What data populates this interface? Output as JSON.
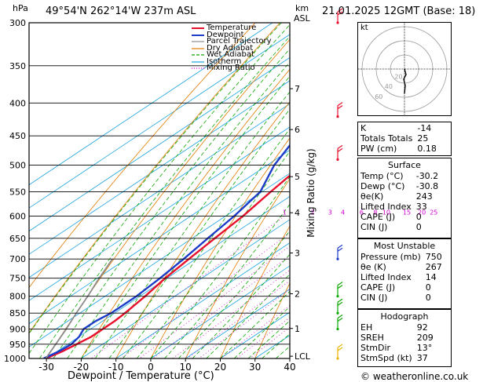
{
  "header": {
    "pressure_unit": "hPa",
    "location": "49°54'N  262°14'W  237m  ASL",
    "km_label": "km",
    "asl_label": "ASL",
    "datetime": "21.01.2025  12GMT  (Base: 18)"
  },
  "chart_data": {
    "type": "line",
    "title": "",
    "xlabel": "Dewpoint / Temperature (°C)",
    "ylabel": "hPa",
    "mixing_axis_label": "Mixing Ratio (g/kg)",
    "x_ticks": [
      -30,
      -20,
      -10,
      0,
      10,
      20,
      30,
      40
    ],
    "x_range": [
      -35,
      40
    ],
    "pressure_levels": [
      300,
      350,
      400,
      450,
      500,
      550,
      600,
      650,
      700,
      750,
      800,
      850,
      900,
      950,
      1000
    ],
    "pressure_range": [
      300,
      1000
    ],
    "y_scale": "log",
    "height_km_ticks": [
      {
        "km": "1",
        "p": 898
      },
      {
        "km": "2",
        "p": 793
      },
      {
        "km": "3",
        "p": 685
      },
      {
        "km": "4",
        "p": 593
      },
      {
        "km": "5",
        "p": 521
      },
      {
        "km": "6",
        "p": 440
      },
      {
        "km": "7",
        "p": 380
      },
      {
        "km": "LCL",
        "p": 992
      }
    ],
    "mixing_ratio_labels": [
      "1",
      "2",
      "3",
      "4",
      "6",
      "8",
      "10",
      "15",
      "20",
      "25"
    ],
    "mixing_ratio_values": [
      1,
      2,
      3,
      4,
      6,
      8,
      10,
      15,
      20,
      25
    ],
    "legend": [
      "Temperature",
      "Dewpoint",
      "Parcel Trajectory",
      "Dry Adiabat",
      "Wet Adiabat",
      "Isotherm",
      "Mixing Ratio"
    ],
    "legend_placement": "top-right",
    "series": [
      {
        "name": "Temperature",
        "color": "#e8112d",
        "points": [
          [
            1000,
            -30.2
          ],
          [
            975,
            -28.5
          ],
          [
            950,
            -27.5
          ],
          [
            925,
            -26.5
          ],
          [
            900,
            -26.5
          ],
          [
            875,
            -26.5
          ],
          [
            850,
            -27
          ],
          [
            800,
            -28.5
          ],
          [
            750,
            -30.5
          ],
          [
            700,
            -32
          ],
          [
            650,
            -33.5
          ],
          [
            600,
            -35
          ],
          [
            550,
            -37.5
          ],
          [
            500,
            -40
          ],
          [
            450,
            -43
          ],
          [
            400,
            -46
          ],
          [
            350,
            -48
          ],
          [
            300,
            -50
          ]
        ]
      },
      {
        "name": "Dewpoint",
        "color": "#1c3cc8",
        "points": [
          [
            1000,
            -30.8
          ],
          [
            975,
            -29.5
          ],
          [
            950,
            -29
          ],
          [
            925,
            -30
          ],
          [
            900,
            -32
          ],
          [
            875,
            -32
          ],
          [
            850,
            -31
          ],
          [
            800,
            -31
          ],
          [
            750,
            -32
          ],
          [
            700,
            -33.5
          ],
          [
            650,
            -35.5
          ],
          [
            600,
            -37.5
          ],
          [
            550,
            -40.5
          ],
          [
            500,
            -48
          ],
          [
            450,
            -54
          ],
          [
            400,
            -58
          ],
          [
            350,
            -60
          ],
          [
            300,
            -62
          ]
        ]
      },
      {
        "name": "Parcel Trajectory",
        "color": "#8c8c8c",
        "points": [
          [
            1000,
            -30.2
          ],
          [
            950,
            -33.5
          ],
          [
            900,
            -37
          ],
          [
            850,
            -41
          ],
          [
            800,
            -45
          ],
          [
            750,
            -49.5
          ],
          [
            700,
            -54
          ]
        ]
      }
    ],
    "colors": {
      "temperature": "#e8112d",
      "dewpoint": "#1c3cc8",
      "parcel": "#8c8c8c",
      "dry_adiabat": "#e07b00",
      "wet_adiabat": "#0aa800",
      "isotherm": "#1aa3e0",
      "mixing_ratio": "#d400d4"
    }
  },
  "hodograph": {
    "kt_label": "kt",
    "ring_labels": [
      "20",
      "40",
      "60"
    ],
    "title": ""
  },
  "indices": {
    "rows": [
      {
        "label": "K",
        "value": "-14"
      },
      {
        "label": "Totals Totals",
        "value": "25"
      },
      {
        "label": "PW (cm)",
        "value": "0.18"
      }
    ]
  },
  "surface": {
    "title": "Surface",
    "rows": [
      {
        "label": "Temp (°C)",
        "value": "-30.2"
      },
      {
        "label": "Dewp (°C)",
        "value": "-30.8"
      },
      {
        "label": "θe(K)",
        "value": "243"
      },
      {
        "label": "Lifted Index",
        "value": "33"
      },
      {
        "label": "CAPE (J)",
        "value": "0"
      },
      {
        "label": "CIN (J)",
        "value": "0"
      }
    ]
  },
  "most_unstable": {
    "title": "Most Unstable",
    "rows": [
      {
        "label": "Pressure (mb)",
        "value": "750"
      },
      {
        "label": "θe (K)",
        "value": "267"
      },
      {
        "label": "Lifted Index",
        "value": "14"
      },
      {
        "label": "CAPE (J)",
        "value": "0"
      },
      {
        "label": "CIN (J)",
        "value": "0"
      }
    ]
  },
  "hodograph_table": {
    "title": "Hodograph",
    "rows": [
      {
        "label": "EH",
        "value": "92"
      },
      {
        "label": "SREH",
        "value": "209"
      },
      {
        "label": "StmDir",
        "value": "13°"
      },
      {
        "label": "StmSpd (kt)",
        "value": "37"
      }
    ]
  },
  "footer": {
    "copyright": "© weatheronline.co.uk"
  }
}
